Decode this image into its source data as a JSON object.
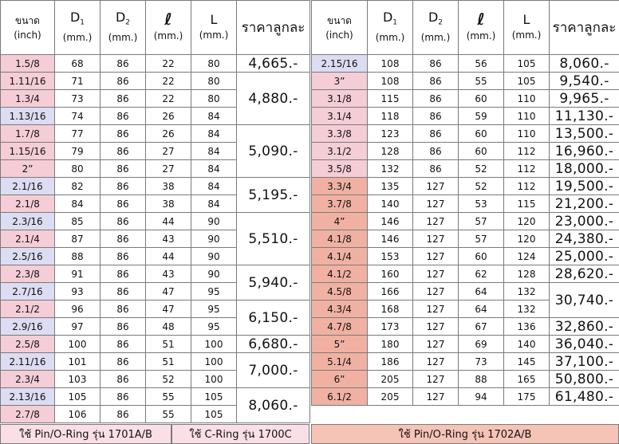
{
  "headers": {
    "size": "ขนาด",
    "size_unit": "(inch)",
    "d1": "D",
    "d1_sub": "1",
    "d2": "D",
    "d2_sub": "2",
    "ell": "ℓ",
    "len": "L",
    "mm": "(mm.)",
    "price": "ราคาลูกละ"
  },
  "colors": {
    "pink": "#f4cdd7",
    "lavender": "#dcdcf2",
    "salmon": "#f0b1a3",
    "footer_left": "#fbdfe6",
    "footer_right": "#f6c4b6"
  },
  "left_table": {
    "rows": [
      {
        "size": "1.5/8",
        "d1": "68",
        "d2": "86",
        "l": "22",
        "L": "80",
        "hl": "pink"
      },
      {
        "size": "1.11/16",
        "d1": "71",
        "d2": "86",
        "l": "22",
        "L": "80",
        "hl": "pink"
      },
      {
        "size": "1.3/4",
        "d1": "73",
        "d2": "86",
        "l": "22",
        "L": "80",
        "hl": "pink"
      },
      {
        "size": "1.13/16",
        "d1": "74",
        "d2": "86",
        "l": "26",
        "L": "84",
        "hl": "lavender"
      },
      {
        "size": "1.7/8",
        "d1": "77",
        "d2": "86",
        "l": "26",
        "L": "84",
        "hl": "pink"
      },
      {
        "size": "1.15/16",
        "d1": "79",
        "d2": "86",
        "l": "27",
        "L": "84",
        "hl": "pink"
      },
      {
        "size": "2”",
        "d1": "80",
        "d2": "86",
        "l": "27",
        "L": "84",
        "hl": "pink"
      },
      {
        "size": "2.1/16",
        "d1": "82",
        "d2": "86",
        "l": "38",
        "L": "84",
        "hl": "lavender"
      },
      {
        "size": "2.1/8",
        "d1": "84",
        "d2": "86",
        "l": "38",
        "L": "84",
        "hl": "pink"
      },
      {
        "size": "2.3/16",
        "d1": "85",
        "d2": "86",
        "l": "44",
        "L": "90",
        "hl": "lavender"
      },
      {
        "size": "2.1/4",
        "d1": "87",
        "d2": "86",
        "l": "43",
        "L": "90",
        "hl": "pink"
      },
      {
        "size": "2.5/16",
        "d1": "88",
        "d2": "86",
        "l": "44",
        "L": "90",
        "hl": "lavender"
      },
      {
        "size": "2.3/8",
        "d1": "91",
        "d2": "86",
        "l": "43",
        "L": "90",
        "hl": "pink"
      },
      {
        "size": "2.7/16",
        "d1": "93",
        "d2": "86",
        "l": "47",
        "L": "95",
        "hl": "lavender"
      },
      {
        "size": "2.1/2",
        "d1": "96",
        "d2": "86",
        "l": "47",
        "L": "95",
        "hl": "pink"
      },
      {
        "size": "2.9/16",
        "d1": "97",
        "d2": "86",
        "l": "48",
        "L": "95",
        "hl": "lavender"
      },
      {
        "size": "2.5/8",
        "d1": "100",
        "d2": "86",
        "l": "51",
        "L": "100",
        "hl": "pink"
      },
      {
        "size": "2.11/16",
        "d1": "101",
        "d2": "86",
        "l": "51",
        "L": "100",
        "hl": "lavender"
      },
      {
        "size": "2.3/4",
        "d1": "103",
        "d2": "86",
        "l": "52",
        "L": "100",
        "hl": "pink"
      },
      {
        "size": "2.13/16",
        "d1": "105",
        "d2": "86",
        "l": "55",
        "L": "105",
        "hl": "lavender"
      },
      {
        "size": "2.7/8",
        "d1": "106",
        "d2": "86",
        "l": "55",
        "L": "105",
        "hl": "pink"
      }
    ],
    "prices": [
      {
        "value": "4,665.-",
        "span": 1
      },
      {
        "value": "4,880.-",
        "span": 3
      },
      {
        "value": "5,090.-",
        "span": 3
      },
      {
        "value": "5,195.-",
        "span": 2
      },
      {
        "value": "5,510.-",
        "span": 3
      },
      {
        "value": "5,940.-",
        "span": 2
      },
      {
        "value": "6,150.-",
        "span": 2
      },
      {
        "value": "6,680.-",
        "span": 1
      },
      {
        "value": "7,000.-",
        "span": 2
      },
      {
        "value": "8,060.-",
        "span": 2
      }
    ]
  },
  "right_table": {
    "rows": [
      {
        "size": "2.15/16",
        "d1": "108",
        "d2": "86",
        "l": "56",
        "L": "105",
        "hl": "lavender"
      },
      {
        "size": "3”",
        "d1": "108",
        "d2": "86",
        "l": "55",
        "L": "105",
        "hl": "pink"
      },
      {
        "size": "3.1/8",
        "d1": "115",
        "d2": "86",
        "l": "60",
        "L": "110",
        "hl": "pink"
      },
      {
        "size": "3.1/4",
        "d1": "118",
        "d2": "86",
        "l": "59",
        "L": "110",
        "hl": "pink"
      },
      {
        "size": "3.3/8",
        "d1": "123",
        "d2": "86",
        "l": "60",
        "L": "110",
        "hl": "pink"
      },
      {
        "size": "3.1/2",
        "d1": "128",
        "d2": "86",
        "l": "60",
        "L": "112",
        "hl": "pink"
      },
      {
        "size": "3.5/8",
        "d1": "132",
        "d2": "86",
        "l": "52",
        "L": "112",
        "hl": "pink"
      },
      {
        "size": "3.3/4",
        "d1": "135",
        "d2": "127",
        "l": "52",
        "L": "112",
        "hl": "salmon"
      },
      {
        "size": "3.7/8",
        "d1": "140",
        "d2": "127",
        "l": "53",
        "L": "115",
        "hl": "salmon"
      },
      {
        "size": "4”",
        "d1": "146",
        "d2": "127",
        "l": "57",
        "L": "120",
        "hl": "salmon"
      },
      {
        "size": "4.1/8",
        "d1": "146",
        "d2": "127",
        "l": "57",
        "L": "120",
        "hl": "salmon"
      },
      {
        "size": "4.1/4",
        "d1": "153",
        "d2": "127",
        "l": "60",
        "L": "124",
        "hl": "salmon"
      },
      {
        "size": "4.1/2",
        "d1": "160",
        "d2": "127",
        "l": "62",
        "L": "128",
        "hl": "salmon"
      },
      {
        "size": "4.5/8",
        "d1": "166",
        "d2": "127",
        "l": "64",
        "L": "132",
        "hl": "salmon"
      },
      {
        "size": "4.3/4",
        "d1": "168",
        "d2": "127",
        "l": "64",
        "L": "132",
        "hl": "salmon"
      },
      {
        "size": "4.7/8",
        "d1": "173",
        "d2": "127",
        "l": "67",
        "L": "136",
        "hl": "salmon"
      },
      {
        "size": "5”",
        "d1": "180",
        "d2": "127",
        "l": "69",
        "L": "140",
        "hl": "salmon"
      },
      {
        "size": "5.1/4",
        "d1": "186",
        "d2": "127",
        "l": "73",
        "L": "145",
        "hl": "salmon"
      },
      {
        "size": "6”",
        "d1": "205",
        "d2": "127",
        "l": "88",
        "L": "165",
        "hl": "salmon"
      },
      {
        "size": "6.1/2",
        "d1": "205",
        "d2": "127",
        "l": "94",
        "L": "175",
        "hl": "salmon"
      }
    ],
    "prices": [
      {
        "value": "8,060.-",
        "span": 1
      },
      {
        "value": "9,540.-",
        "span": 1
      },
      {
        "value": "9,965.-",
        "span": 1
      },
      {
        "value": "11,130.-",
        "span": 1
      },
      {
        "value": "13,500.-",
        "span": 1
      },
      {
        "value": "16,960.-",
        "span": 1
      },
      {
        "value": "18,000.-",
        "span": 1
      },
      {
        "value": "19,500.-",
        "span": 1
      },
      {
        "value": "21,200.-",
        "span": 1
      },
      {
        "value": "23,000.-",
        "span": 1
      },
      {
        "value": "24,380.-",
        "span": 1
      },
      {
        "value": "25,000.-",
        "span": 1
      },
      {
        "value": "28,620.-",
        "span": 1
      },
      {
        "value": "30,740.-",
        "span": 2
      },
      {
        "value": "32,860.-",
        "span": 1
      },
      {
        "value": "36,040.-",
        "span": 1
      },
      {
        "value": "37,100.-",
        "span": 1
      },
      {
        "value": "50,800.-",
        "span": 1
      },
      {
        "value": "61,480.-",
        "span": 1
      }
    ]
  },
  "footer": {
    "left_1": "ใช้ Pin/O-Ring รุ่น 1701A/B",
    "left_2": "ใช้ C-Ring รุ่น 1700C",
    "right": "ใช้ Pin/O-Ring รุ่น 1702A/B"
  }
}
